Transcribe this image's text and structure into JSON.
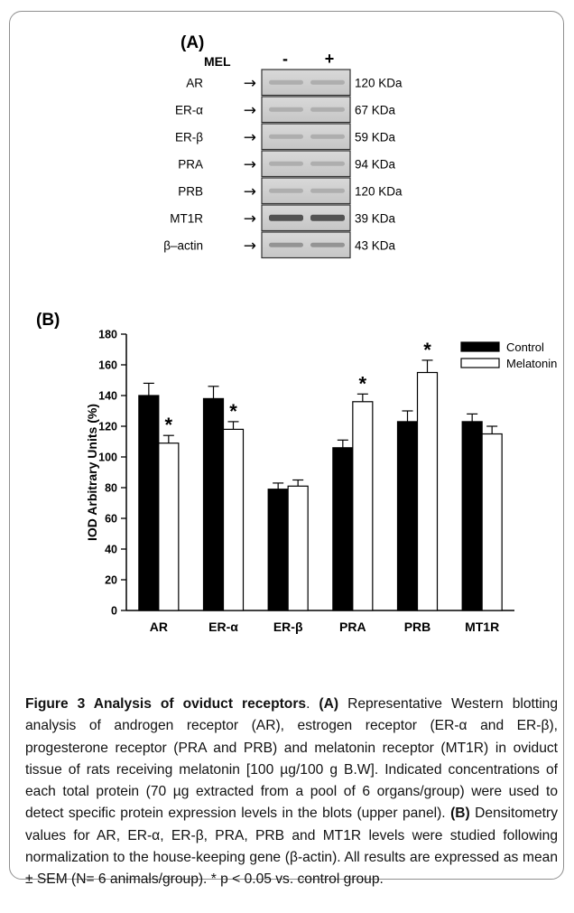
{
  "panel_a": {
    "label": "(A)",
    "mel_label": "MEL",
    "lanes": [
      "-",
      "+"
    ],
    "rows": [
      {
        "name": "AR",
        "kda": "120 KDa"
      },
      {
        "name": "ER-α",
        "kda": "67 KDa"
      },
      {
        "name": "ER-β",
        "kda": "59 KDa"
      },
      {
        "name": "PRA",
        "kda": "94 KDa"
      },
      {
        "name": "PRB",
        "kda": "120 KDa"
      },
      {
        "name": "MT1R",
        "kda": "39 KDa"
      },
      {
        "name": "β–actin",
        "kda": "43 KDa"
      }
    ],
    "arrow_glyph": "→"
  },
  "panel_b": {
    "label": "(B)"
  },
  "chart_data": {
    "type": "bar",
    "categories": [
      "AR",
      "ER-α",
      "ER-β",
      "PRA",
      "PRB",
      "MT1R"
    ],
    "series": [
      {
        "name": "Control",
        "values": [
          140,
          138,
          79,
          106,
          123,
          123
        ],
        "errors": [
          8,
          8,
          4,
          5,
          7,
          5
        ],
        "color": "#000000"
      },
      {
        "name": "Melatonin",
        "values": [
          109,
          118,
          81,
          136,
          155,
          115
        ],
        "errors": [
          5,
          5,
          4,
          5,
          8,
          5
        ],
        "color": "#ffffff"
      }
    ],
    "significance_marker": "*",
    "significant": {
      "Melatonin": [
        true,
        true,
        false,
        true,
        true,
        false
      ]
    },
    "ylabel": "IOD Arbitrary Units (%)",
    "xlabel": "",
    "ylim": [
      0,
      180
    ],
    "yticks": [
      0,
      20,
      40,
      60,
      80,
      100,
      120,
      140,
      160,
      180
    ],
    "legend_position": "top-right"
  },
  "caption": {
    "title": "Figure 3 Analysis of oviduct receptors",
    "title_end": ".",
    "a_tag": "(A)",
    "a_text": "Representative Western blotting analysis of androgen receptor (AR), estrogen receptor (ER-α and ER-β), progesterone receptor (PRA and PRB) and melatonin receptor (MT1R) in oviduct tissue of rats receiving melatonin [100 µg/100 g B.W]. Indicated concentrations of each total protein (70 µg extracted from a pool of 6 organs/group) were used to detect specific protein expression levels in the blots (upper panel).",
    "b_tag": "(B)",
    "b_text": "Densitometry values for AR, ER-α, ER-β, PRA, PRB and MT1R levels were studied following normalization to the house-keeping gene (β-actin). All results are expressed as mean ± SEM (N= 6 animals/group). * p < 0.05 vs. control group."
  }
}
